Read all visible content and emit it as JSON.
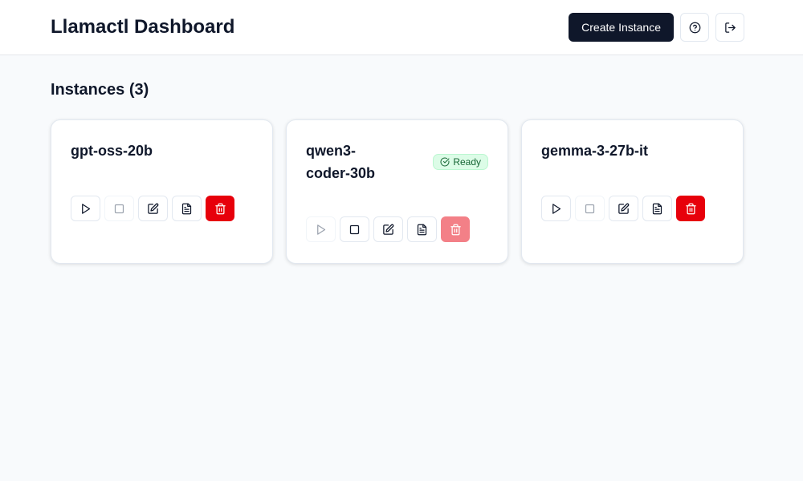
{
  "header": {
    "title": "Llamactl Dashboard",
    "create_label": "Create Instance",
    "help_icon": "help-circle-icon",
    "logout_icon": "logout-icon"
  },
  "main": {
    "heading": "Instances (3)",
    "instances": [
      {
        "name": "gpt-oss-20b",
        "status": "",
        "running": false
      },
      {
        "name": "qwen3-coder-30b",
        "status": "Ready",
        "running": true
      },
      {
        "name": "gemma-3-27b-it",
        "status": "",
        "running": false
      }
    ]
  },
  "colors": {
    "primary": "#0f172a",
    "danger": "#e7000b",
    "ready_bg": "#dcfce7",
    "ready_text": "#166534"
  }
}
